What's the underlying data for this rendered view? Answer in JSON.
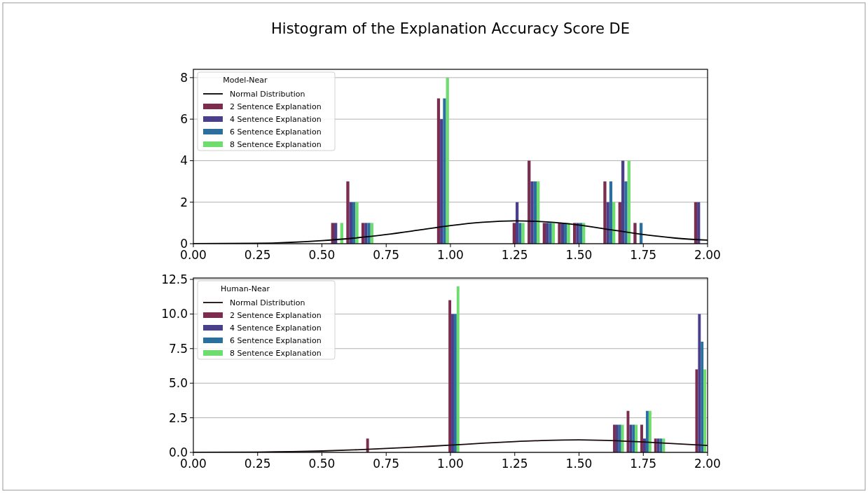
{
  "chart_data": [
    {
      "type": "histogram",
      "title": "Histogram of the Explanation Accuracy Score DE",
      "legend_title": "Model-Near",
      "legend": "top left",
      "grid": "y",
      "bins": [
        0.53,
        0.589,
        0.648,
        0.706,
        0.765,
        0.824,
        0.883,
        0.942,
        1.0,
        1.059,
        1.118,
        1.177,
        1.236,
        1.294,
        1.353,
        1.412,
        1.471,
        1.53,
        1.589,
        1.647,
        1.706,
        1.765,
        1.824,
        1.883,
        1.942,
        2.0
      ],
      "xlim": [
        0,
        2
      ],
      "xticks": [
        {
          "value": 0,
          "label": "0.00"
        },
        {
          "value": 0.25,
          "label": "0.25"
        },
        {
          "value": 0.5,
          "label": "0.50"
        },
        {
          "value": 0.75,
          "label": "0.75"
        },
        {
          "value": 1,
          "label": "1.00"
        },
        {
          "value": 1.25,
          "label": "1.25"
        },
        {
          "value": 1.5,
          "label": "1.50"
        },
        {
          "value": 1.75,
          "label": "1.75"
        },
        {
          "value": 2,
          "label": "2.00"
        }
      ],
      "ylim": [
        0,
        8.4
      ],
      "yticks": [
        0,
        2,
        4,
        6,
        8
      ],
      "series": [
        {
          "type": "line",
          "name": "Normal Distribution",
          "color": "#000000",
          "x": [
            0,
            0.25,
            0.5,
            0.625,
            0.75,
            0.875,
            1.0,
            1.125,
            1.25,
            1.375,
            1.5,
            1.625,
            1.75,
            1.875,
            2.0
          ],
          "values": [
            0.0,
            0.02,
            0.15,
            0.27,
            0.44,
            0.65,
            0.87,
            1.03,
            1.1,
            1.05,
            0.9,
            0.67,
            0.44,
            0.27,
            0.17
          ]
        },
        {
          "name": "2 Sentence Explanation",
          "color": "#7b2d4f",
          "values": [
            1,
            3,
            1,
            0,
            0,
            0,
            0,
            7,
            0,
            0,
            0,
            0,
            1,
            4,
            1,
            1,
            1,
            0,
            3,
            2,
            1,
            0,
            0,
            0,
            2
          ]
        },
        {
          "name": "4 Sentence Explanation",
          "color": "#4a3f8a",
          "values": [
            1,
            2,
            1,
            0,
            0,
            0,
            0,
            6,
            0,
            0,
            0,
            0,
            2,
            3,
            1,
            1,
            1,
            0,
            2,
            4,
            0,
            0,
            0,
            0,
            2
          ]
        },
        {
          "name": "6 Sentence Explanation",
          "color": "#2b6f9e",
          "values": [
            0,
            2,
            1,
            0,
            0,
            0,
            0,
            7,
            0,
            0,
            0,
            0,
            1,
            3,
            1,
            1,
            1,
            0,
            3,
            3,
            1,
            0,
            0,
            0,
            0
          ]
        },
        {
          "name": "8 Sentence Explanation",
          "color": "#6fdc6f",
          "values": [
            1,
            2,
            1,
            0,
            0,
            0,
            0,
            8,
            0,
            0,
            0,
            0,
            1,
            3,
            1,
            1,
            1,
            0,
            2,
            4,
            0,
            0,
            0,
            0,
            0
          ]
        }
      ]
    },
    {
      "type": "histogram",
      "legend_title": "Human-Near",
      "legend": "top left",
      "grid": "y",
      "bins": [
        0.667,
        0.72,
        0.773,
        0.827,
        0.88,
        0.933,
        0.987,
        1.04,
        1.093,
        1.147,
        1.2,
        1.253,
        1.307,
        1.36,
        1.413,
        1.467,
        1.52,
        1.573,
        1.627,
        1.68,
        1.733,
        1.787,
        1.84,
        1.893,
        1.947,
        2.0
      ],
      "xlim": [
        0,
        2
      ],
      "xticks": [
        {
          "value": 0,
          "label": "0.00"
        },
        {
          "value": 0.25,
          "label": "0.25"
        },
        {
          "value": 0.5,
          "label": "0.50"
        },
        {
          "value": 0.75,
          "label": "0.75"
        },
        {
          "value": 1,
          "label": "1.00"
        },
        {
          "value": 1.25,
          "label": "1.25"
        },
        {
          "value": 1.5,
          "label": "1.50"
        },
        {
          "value": 1.75,
          "label": "1.75"
        },
        {
          "value": 2,
          "label": "2.00"
        }
      ],
      "ylim": [
        0,
        12.6
      ],
      "yticks": [
        {
          "value": 0,
          "label": "0.0"
        },
        2.5,
        {
          "value": 5,
          "label": "5.0"
        },
        7.5,
        {
          "value": 10,
          "label": "10.0"
        },
        12.5
      ],
      "series": [
        {
          "type": "line",
          "name": "Normal Distribution",
          "color": "#1a0a0a",
          "x": [
            0,
            0.25,
            0.5,
            0.625,
            0.75,
            0.875,
            1.0,
            1.125,
            1.25,
            1.375,
            1.5,
            1.625,
            1.75,
            1.875,
            2.0
          ],
          "values": [
            0.0,
            0.02,
            0.1,
            0.18,
            0.28,
            0.4,
            0.52,
            0.66,
            0.78,
            0.87,
            0.9,
            0.85,
            0.75,
            0.63,
            0.5
          ]
        },
        {
          "name": "2 Sentence Explanation",
          "color": "#7b2d4f",
          "values": [
            1,
            0,
            0,
            0,
            0,
            0,
            11,
            0,
            0,
            0,
            0,
            0,
            0,
            0,
            0,
            0,
            0,
            0,
            2,
            3,
            2,
            1,
            0,
            0,
            6
          ]
        },
        {
          "name": "4 Sentence Explanation",
          "color": "#4a3f8a",
          "values": [
            0,
            0,
            0,
            0,
            0,
            0,
            10,
            0,
            0,
            0,
            0,
            0,
            0,
            0,
            0,
            0,
            0,
            0,
            2,
            2,
            1,
            1,
            0,
            0,
            10
          ]
        },
        {
          "name": "6 Sentence Explanation",
          "color": "#2b6f9e",
          "values": [
            0,
            0,
            0,
            0,
            0,
            0,
            10,
            0,
            0,
            0,
            0,
            0,
            0,
            0,
            0,
            0,
            0,
            0,
            2,
            2,
            3,
            1,
            0,
            0,
            8
          ]
        },
        {
          "name": "8 Sentence Explanation",
          "color": "#6fdc6f",
          "values": [
            0,
            0,
            0,
            0,
            0,
            0,
            12,
            0,
            0,
            0,
            0,
            0,
            0,
            0,
            0,
            0,
            0,
            0,
            2,
            2,
            3,
            1,
            0,
            0,
            6
          ]
        }
      ]
    }
  ]
}
